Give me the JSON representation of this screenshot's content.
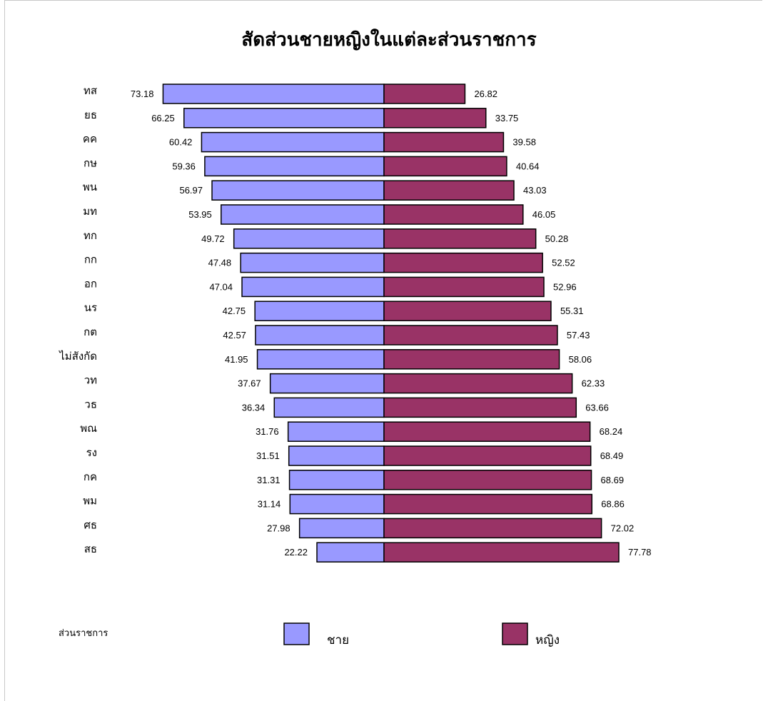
{
  "chart_data": {
    "type": "bar",
    "orientation": "horizontal-diverging",
    "title": "สัดส่วนชายหญิงในแต่ละส่วนราชการ",
    "axis_caption": "ส่วนราชการ",
    "categories": [
      "ทส",
      "ยธ",
      "คค",
      "กษ",
      "พน",
      "มท",
      "ทก",
      "กก",
      "อก",
      "นร",
      "กต",
      "ไม่สังกัด",
      "วท",
      "วธ",
      "พณ",
      "รง",
      "กค",
      "พม",
      "ศธ",
      "สธ"
    ],
    "series": [
      {
        "name": "ชาย",
        "color": "#9999ff",
        "values": [
          73.18,
          66.25,
          60.42,
          59.36,
          56.97,
          53.95,
          49.72,
          47.48,
          47.04,
          42.75,
          42.57,
          41.95,
          37.67,
          36.34,
          31.76,
          31.51,
          31.31,
          31.14,
          27.98,
          22.22
        ]
      },
      {
        "name": "หญิง",
        "color": "#993366",
        "values": [
          26.82,
          33.75,
          39.58,
          40.64,
          43.03,
          46.05,
          50.28,
          52.52,
          52.96,
          55.31,
          57.43,
          58.06,
          62.33,
          63.66,
          68.24,
          68.49,
          68.69,
          68.86,
          72.02,
          77.78
        ]
      }
    ],
    "legend_position": "bottom",
    "grid": false
  }
}
